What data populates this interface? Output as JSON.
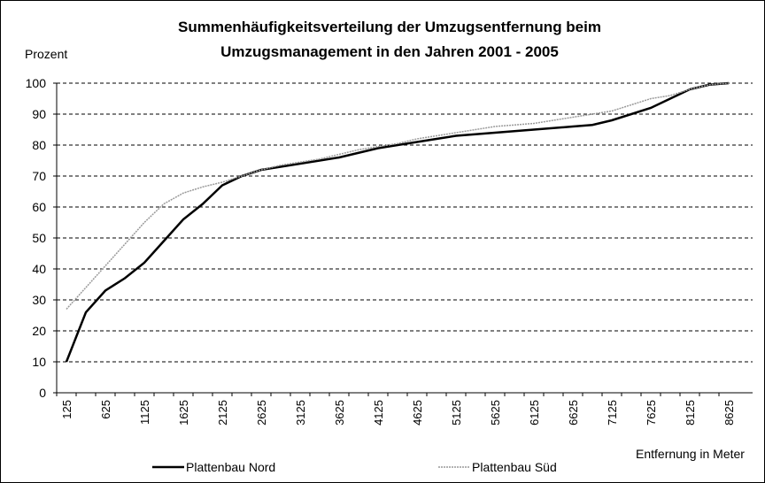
{
  "chart_data": {
    "type": "line",
    "title": [
      "Summenhäufigkeitsverteilung der Umzugsentfernung beim",
      "Umzugsmanagement in den Jahren 2001 - 2005"
    ],
    "y_label": "Prozent",
    "x_label": "Entfernung in Meter",
    "categories": [
      "125",
      null,
      "625",
      null,
      "1125",
      null,
      "1625",
      null,
      "2125",
      null,
      "2625",
      null,
      "3125",
      null,
      "3625",
      null,
      "4125",
      null,
      "4625",
      null,
      "5125",
      null,
      "5625",
      null,
      "6125",
      null,
      "6625",
      null,
      "7125",
      null,
      "7625",
      null,
      "8125",
      null,
      "8625"
    ],
    "series": [
      {
        "name": "Plattenbau Nord",
        "color": "#000000",
        "values": [
          10,
          26,
          33,
          37,
          42,
          49,
          56,
          61,
          67,
          70,
          72,
          73,
          74,
          75,
          76,
          77.5,
          79,
          80,
          81,
          82,
          83,
          83.5,
          84,
          84.5,
          85,
          85.5,
          86,
          86.5,
          88,
          90,
          92,
          95,
          98,
          99.5,
          100
        ]
      },
      {
        "name": "Plattenbau Süd",
        "color": "#999999",
        "values": [
          27,
          34,
          41,
          48,
          55,
          61,
          64.5,
          66.5,
          68,
          70,
          72,
          73.5,
          74.5,
          75.5,
          77,
          78.5,
          79.5,
          80.5,
          82,
          83,
          84,
          85,
          86,
          86.5,
          87,
          88,
          89,
          90,
          91,
          93,
          95,
          96,
          98,
          99.5,
          100
        ]
      }
    ],
    "ylim": [
      0,
      100
    ],
    "yticks": [
      0,
      10,
      20,
      30,
      40,
      50,
      60,
      70,
      80,
      90,
      100
    ],
    "grid": true,
    "legend": "bottom"
  }
}
